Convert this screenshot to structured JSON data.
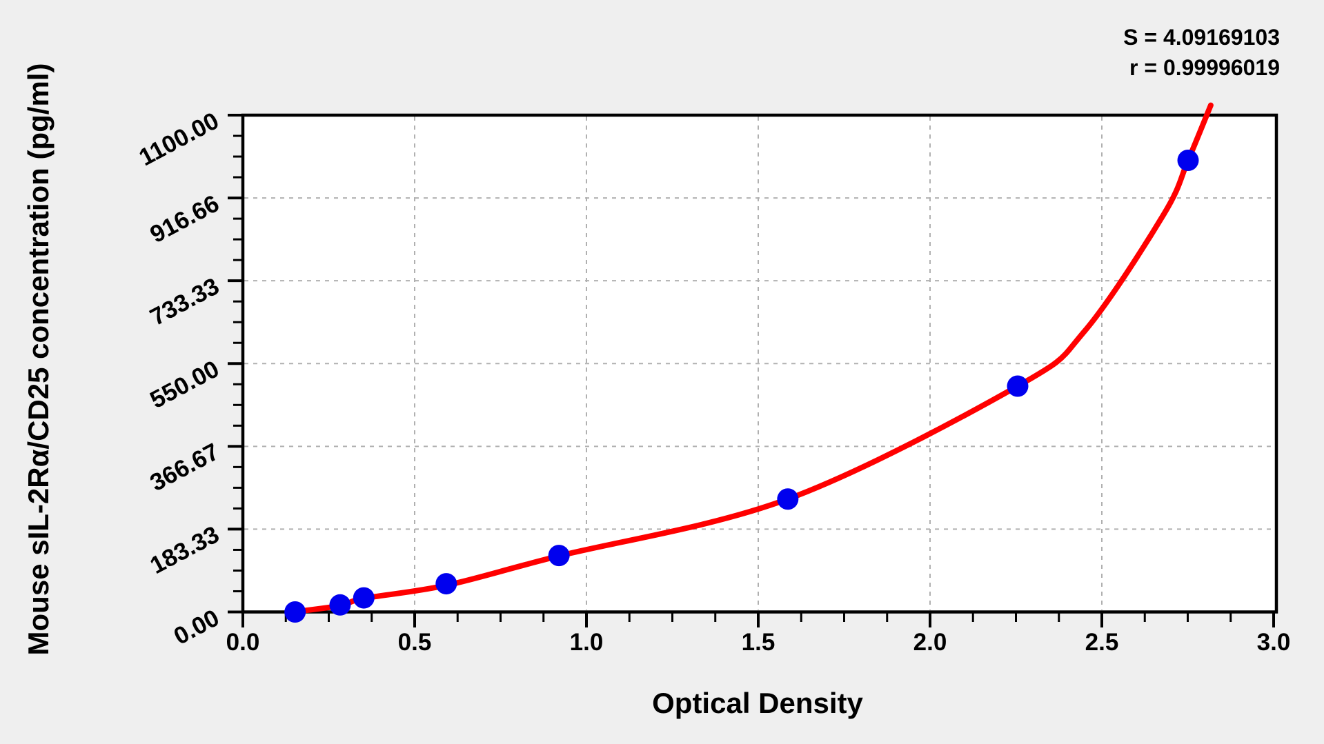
{
  "chart_data": {
    "type": "scatter",
    "title": "",
    "xlabel": "Optical Density",
    "ylabel": "Mouse sIL-2Rα/CD25 concentration (pg/ml)",
    "annotations": {
      "s": "S = 4.09169103",
      "r": "r = 0.99996019"
    },
    "x_ticks": [
      "0.0",
      "0.5",
      "1.0",
      "1.5",
      "2.0",
      "2.5",
      "3.0"
    ],
    "y_ticks": [
      "0.00",
      "183.33",
      "366.67",
      "550.00",
      "733.33",
      "916.66",
      "1100.00"
    ],
    "xlim": [
      0.0,
      3.0
    ],
    "ylim": [
      0,
      1100
    ],
    "x_major_step": 0.5,
    "y_major_step": 183.333,
    "minor_ticks_per_major": 4,
    "grid": {
      "style": "dashed",
      "at_major_ticks": true
    },
    "legend": "none",
    "series": [
      {
        "name": "standard-points",
        "type": "scatter",
        "color": "#0000ee",
        "points": [
          {
            "od": 0.152,
            "conc": 0
          },
          {
            "od": 0.283,
            "conc": 15.6
          },
          {
            "od": 0.352,
            "conc": 31.2
          },
          {
            "od": 0.592,
            "conc": 62.5
          },
          {
            "od": 0.92,
            "conc": 125
          },
          {
            "od": 1.586,
            "conc": 250
          },
          {
            "od": 2.255,
            "conc": 500
          },
          {
            "od": 2.751,
            "conc": 1000
          }
        ]
      },
      {
        "name": "fitted-curve",
        "type": "line",
        "color": "#ff0000",
        "points": [
          {
            "od": 0.147,
            "conc": 0
          },
          {
            "od": 0.283,
            "conc": 14
          },
          {
            "od": 0.352,
            "conc": 30
          },
          {
            "od": 0.592,
            "conc": 59
          },
          {
            "od": 0.92,
            "conc": 124
          },
          {
            "od": 1.586,
            "conc": 250
          },
          {
            "od": 2.255,
            "conc": 500
          },
          {
            "od": 2.45,
            "conc": 622
          },
          {
            "od": 2.68,
            "conc": 880
          },
          {
            "od": 2.751,
            "conc": 1000
          },
          {
            "od": 2.817,
            "conc": 1122
          }
        ]
      }
    ],
    "colors": {
      "page_bg": "#efefef",
      "plot_bg": "#ffffff",
      "axis": "#000000",
      "grid": "#b0b0b0",
      "point": "#0000ee",
      "curve": "#ff0000",
      "text": "#000000"
    }
  }
}
